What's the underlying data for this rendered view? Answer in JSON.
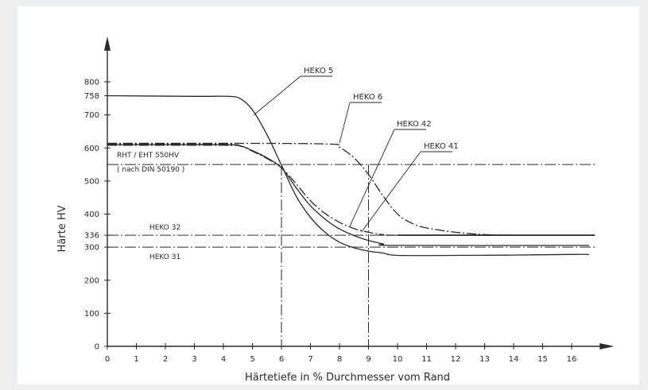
{
  "chart_data": {
    "type": "line",
    "title": "",
    "xlabel": "Härtetiefe in % Durchmesser vom Rand",
    "ylabel": "Härte   HV",
    "xlim": [
      0,
      16.8
    ],
    "ylim": [
      0,
      880
    ],
    "x_ticks": [
      0,
      1,
      2,
      3,
      4,
      5,
      6,
      7,
      8,
      9,
      10,
      11,
      12,
      13,
      14,
      15,
      16
    ],
    "y_ticks": [
      0,
      100,
      200,
      300,
      336,
      400,
      500,
      600,
      700,
      758,
      800
    ],
    "y_tick_labels": [
      "0",
      "100",
      "200",
      "300",
      "336",
      "400",
      "500",
      "600",
      "700",
      "758",
      "800"
    ],
    "grid": false,
    "series": [
      {
        "name": "HEKO 5",
        "style": "solid",
        "points": [
          [
            0,
            758
          ],
          [
            3,
            756
          ],
          [
            4.2,
            756
          ],
          [
            4.6,
            748
          ],
          [
            5,
            715
          ],
          [
            5.5,
            640
          ],
          [
            6,
            548
          ],
          [
            6.5,
            455
          ],
          [
            7,
            390
          ],
          [
            7.5,
            345
          ],
          [
            8,
            315
          ],
          [
            8.5,
            298
          ],
          [
            9,
            288
          ],
          [
            9.5,
            282
          ],
          [
            10,
            275
          ],
          [
            12,
            275
          ],
          [
            14,
            276
          ],
          [
            16,
            278
          ],
          [
            16.6,
            278
          ]
        ]
      },
      {
        "name": "HEKO 6",
        "style": "dashdot",
        "points": [
          [
            0,
            614
          ],
          [
            4,
            614
          ],
          [
            7.6,
            612
          ],
          [
            8,
            602
          ],
          [
            8.5,
            570
          ],
          [
            9,
            520
          ],
          [
            9.5,
            455
          ],
          [
            10,
            400
          ],
          [
            10.5,
            372
          ],
          [
            11,
            358
          ],
          [
            12,
            345
          ],
          [
            13,
            338
          ],
          [
            14,
            336
          ],
          [
            16.6,
            336
          ]
        ]
      },
      {
        "name": "HEKO 42",
        "style": "dashdot",
        "points": [
          [
            0,
            608
          ],
          [
            4,
            608
          ],
          [
            4.6,
            605
          ],
          [
            5,
            590
          ],
          [
            5.5,
            568
          ],
          [
            6,
            540
          ],
          [
            6.5,
            492
          ],
          [
            7,
            440
          ],
          [
            7.5,
            402
          ],
          [
            8,
            375
          ],
          [
            8.5,
            356
          ],
          [
            9,
            345
          ],
          [
            9.5,
            338
          ],
          [
            10,
            336
          ],
          [
            16.6,
            336
          ]
        ]
      },
      {
        "name": "HEKO 41",
        "style": "solid",
        "points": [
          [
            0,
            610
          ],
          [
            4,
            610
          ],
          [
            4.6,
            606
          ],
          [
            5,
            592
          ],
          [
            5.5,
            570
          ],
          [
            6,
            540
          ],
          [
            6.5,
            480
          ],
          [
            7,
            425
          ],
          [
            7.5,
            385
          ],
          [
            8,
            355
          ],
          [
            8.5,
            335
          ],
          [
            9,
            320
          ],
          [
            9.5,
            310
          ],
          [
            10,
            305
          ],
          [
            16.6,
            305
          ]
        ]
      }
    ],
    "reference_lines": [
      {
        "label": "RHT / EHT 550HV",
        "sublabel": "( nach DIN 50190 )",
        "y": 550
      },
      {
        "label": "HEKO 32",
        "y": 336
      },
      {
        "label": "HEKO 31",
        "y": 300
      }
    ],
    "vertical_markers": [
      6,
      9
    ],
    "annotations": [
      {
        "text": "HEKO 5",
        "target": [
          5.05,
          700
        ]
      },
      {
        "text": "HEKO 6",
        "target": [
          8.0,
          615
        ]
      },
      {
        "text": "HEKO 42",
        "target": [
          8.35,
          362
        ]
      },
      {
        "text": "HEKO 41",
        "target": [
          8.75,
          345
        ]
      }
    ],
    "colors": {
      "ink": "#2a2a2a",
      "background": "#ffffff",
      "page": "#eceef0"
    }
  }
}
